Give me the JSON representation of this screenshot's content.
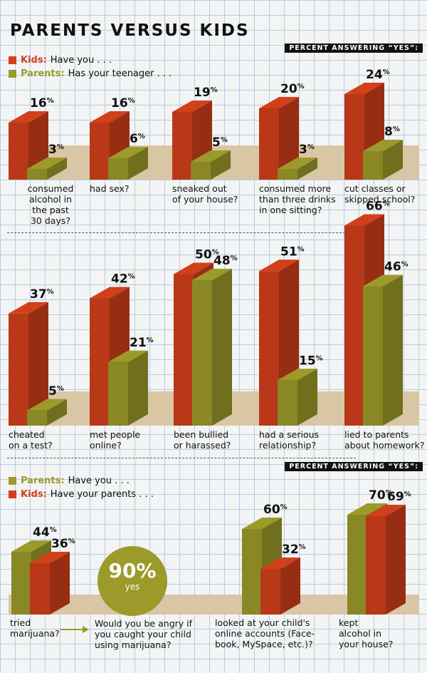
{
  "title": "PARENTS VERSUS KIDS",
  "colors": {
    "kids": "#d2401a",
    "parents": "#9c9a2a",
    "shelf": "#d8c6a5"
  },
  "legend_top": {
    "kids_who": "Kids:",
    "kids_text": "Have you . . .",
    "parents_who": "Parents:",
    "parents_text": "Has your teenager . . ."
  },
  "legend_bottom": {
    "parents_who": "Parents:",
    "parents_text": "Have you . . .",
    "kids_who": "Kids:",
    "kids_text": "Have your parents . . ."
  },
  "pct_label": "PERCENT ANSWERING “YES”:",
  "circle": {
    "value": "90%",
    "sub": "yes"
  },
  "question_note": "Would you be angry if\nyou caught your child\nusing marijuana?",
  "chart_data": [
    {
      "type": "bar",
      "categories": [
        "consumed\nalcohol in\nthe past\n30 days?",
        "had sex?",
        "sneaked out\nof your house?",
        "consumed more\nthan three drinks\nin one sitting?",
        "cut classes or\nskipped school?"
      ],
      "series": [
        {
          "name": "Kids",
          "values": [
            16,
            16,
            19,
            20,
            24
          ]
        },
        {
          "name": "Parents",
          "values": [
            3,
            6,
            5,
            3,
            8
          ]
        }
      ]
    },
    {
      "type": "bar",
      "categories": [
        "cheated\non a test?",
        "met people\nonline?",
        "been bullied\nor harassed?",
        "had a serious\nrelationship?",
        "lied to parents\nabout homework?"
      ],
      "series": [
        {
          "name": "Kids",
          "values": [
            37,
            42,
            50,
            51,
            66
          ]
        },
        {
          "name": "Parents",
          "values": [
            5,
            21,
            48,
            15,
            46
          ]
        }
      ]
    },
    {
      "type": "bar",
      "categories": [
        "tried\nmarijuana?",
        "looked at your child's\nonline accounts (Face-\nbook, MySpace, etc.)?",
        "kept\nalcohol in\nyour house?"
      ],
      "series": [
        {
          "name": "Parents",
          "values": [
            44,
            60,
            70
          ]
        },
        {
          "name": "Kids",
          "values": [
            36,
            32,
            69
          ]
        }
      ]
    }
  ]
}
